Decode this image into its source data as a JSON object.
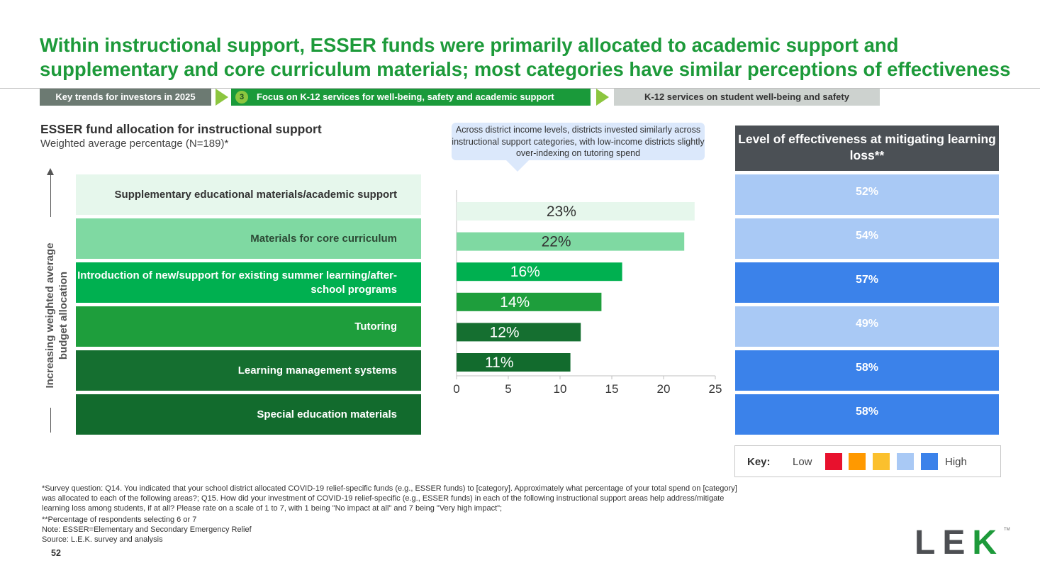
{
  "title": "Within instructional support, ESSER funds were primarily allocated to academic support and supplementary and core curriculum materials; most categories have similar perceptions of effectiveness",
  "breadcrumb": {
    "step1": "Key trends for investors in 2025",
    "step2_number": "3",
    "step2": "Focus on K-12 services for well-being, safety and academic support",
    "step3": "K-12 services on student well-being and safety"
  },
  "section": {
    "title": "ESSER fund allocation for instructional support",
    "subtitle": "Weighted average percentage (N=189)*"
  },
  "callout": "Across district income levels, districts invested similarly across instructional support categories, with low-income districts slightly over-indexing on tutoring spend",
  "y_axis_label": "Increasing weighted average budget allocation",
  "categories": [
    {
      "label": "Supplementary educational materials/academic support",
      "color": "#e6f7ec",
      "text_color": "#333333"
    },
    {
      "label": "Materials for core curriculum",
      "color": "#7fd9a2",
      "text_color": "#2d4a36"
    },
    {
      "label": "Introduction of new/support for existing summer learning/after-school programs",
      "color": "#00b050",
      "text_color": "#ffffff"
    },
    {
      "label": "Tutoring",
      "color": "#1e9e3c",
      "text_color": "#ffffff"
    },
    {
      "label": "Learning management systems",
      "color": "#156f30",
      "text_color": "#ffffff"
    },
    {
      "label": "Special education materials",
      "color": "#126b2d",
      "text_color": "#ffffff"
    }
  ],
  "chart_data": {
    "type": "bar",
    "orientation": "horizontal",
    "categories": [
      "Supplementary educational materials/academic support",
      "Materials for core curriculum",
      "Introduction of new/support for existing summer learning/after-school programs",
      "Tutoring",
      "Learning management systems",
      "Special education materials"
    ],
    "values": [
      23,
      22,
      16,
      14,
      12,
      11
    ],
    "data_labels": [
      "23%",
      "22%",
      "16%",
      "14%",
      "12%",
      "11%"
    ],
    "bar_colors": [
      "#e6f7ec",
      "#7fd9a2",
      "#00b050",
      "#1e9e3c",
      "#156f30",
      "#126b2d"
    ],
    "label_colors": [
      "#333333",
      "#333333",
      "#ffffff",
      "#ffffff",
      "#ffffff",
      "#ffffff"
    ],
    "xlim": [
      0,
      25
    ],
    "xticks": [
      0,
      5,
      10,
      15,
      20,
      25
    ],
    "grid": false
  },
  "effectiveness": {
    "header": "Level of effectiveness at mitigating learning loss**",
    "values": [
      {
        "label": "52%",
        "color": "#a9c9f5",
        "text_color": "#ffffff"
      },
      {
        "label": "54%",
        "color": "#a9c9f5",
        "text_color": "#ffffff"
      },
      {
        "label": "57%",
        "color": "#3b82ea",
        "text_color": "#ffffff"
      },
      {
        "label": "49%",
        "color": "#a9c9f5",
        "text_color": "#ffffff"
      },
      {
        "label": "58%",
        "color": "#3b82ea",
        "text_color": "#ffffff"
      },
      {
        "label": "58%",
        "color": "#3b82ea",
        "text_color": "#ffffff"
      }
    ]
  },
  "key": {
    "label": "Key:",
    "low": "Low",
    "high": "High",
    "swatches": [
      "#e8112d",
      "#ff9900",
      "#fbc02d",
      "#a9c9f5",
      "#3b82ea"
    ]
  },
  "footnotes": {
    "survey": "*Survey question: Q14. You indicated that your school district allocated COVID-19 relief-specific funds (e.g., ESSER funds) to [category]. Approximately what percentage of your total spend on [category] was allocated to each of the following areas?; Q15. How did your investment of COVID-19 relief-specific (e.g., ESSER funds) in each of the following instructional support areas help address/mitigate learning loss among students, if at all? Please rate on a scale of 1 to 7, with 1 being \"No impact at all\" and 7 being \"Very high impact\";",
    "pct": "**Percentage of respondents selecting 6 or 7",
    "note": "Note: ESSER=Elementary and Secondary Emergency Relief",
    "source": "Source: L.E.K. survey and analysis"
  },
  "page_number": "52",
  "logo": {
    "l": "L",
    "e": "E",
    "k": "K",
    "tm": "TM"
  }
}
